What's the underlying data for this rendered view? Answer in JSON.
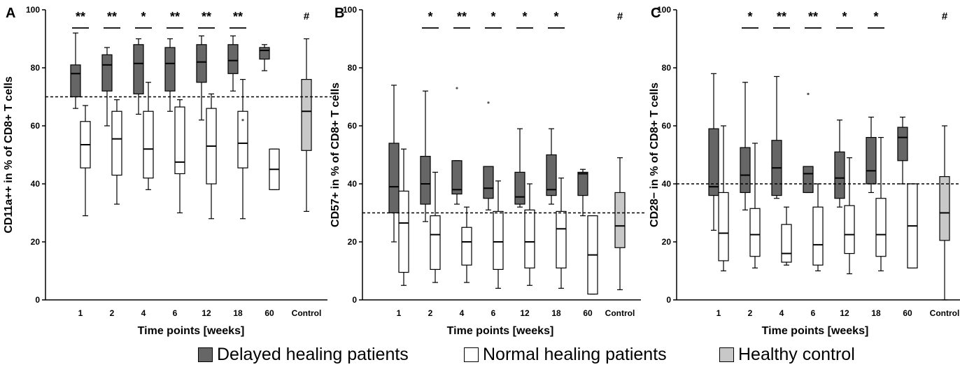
{
  "figure": {
    "x_axis_title": "Time points [weeks]",
    "legend": [
      {
        "label": "Delayed healing patients",
        "color": "#666666"
      },
      {
        "label": "Normal healing patients",
        "color": "#ffffff"
      },
      {
        "label": "Healthy control",
        "color": "#c8c8c8"
      }
    ]
  },
  "chart_data": [
    {
      "type": "box",
      "panel_letter": "A",
      "ylabel": "CD11a++ in % of CD8+ T cells",
      "ylim": [
        0,
        100
      ],
      "yticks": [
        0,
        20,
        40,
        60,
        80,
        100
      ],
      "categories": [
        "1",
        "2",
        "4",
        "6",
        "12",
        "18",
        "60",
        "Control"
      ],
      "reference_line": 70,
      "series": [
        {
          "name": "Delayed healing patients",
          "color": "#666666",
          "boxes": [
            {
              "category": "1",
              "min": 66,
              "q1": 70,
              "median": 78,
              "q3": 81,
              "max": 92
            },
            {
              "category": "2",
              "min": 60,
              "q1": 72,
              "median": 81,
              "q3": 84.5,
              "max": 87
            },
            {
              "category": "4",
              "min": 64,
              "q1": 71,
              "median": 81.5,
              "q3": 88,
              "max": 90
            },
            {
              "category": "6",
              "min": 65,
              "q1": 72,
              "median": 81.5,
              "q3": 87,
              "max": 90
            },
            {
              "category": "12",
              "min": 62,
              "q1": 75,
              "median": 82,
              "q3": 88,
              "max": 91
            },
            {
              "category": "18",
              "min": 72,
              "q1": 78,
              "median": 82.5,
              "q3": 88,
              "max": 91
            },
            {
              "category": "60",
              "min": 79,
              "q1": 83,
              "median": 86,
              "q3": 87,
              "max": 88
            }
          ]
        },
        {
          "name": "Normal healing patients",
          "color": "#ffffff",
          "boxes": [
            {
              "category": "1",
              "min": 29,
              "q1": 45.5,
              "median": 53.5,
              "q3": 61.5,
              "max": 67
            },
            {
              "category": "2",
              "min": 33,
              "q1": 43,
              "median": 55.5,
              "q3": 65,
              "max": 69
            },
            {
              "category": "4",
              "min": 38,
              "q1": 42,
              "median": 52,
              "q3": 65,
              "max": 75
            },
            {
              "category": "6",
              "min": 30,
              "q1": 43.5,
              "median": 47.5,
              "q3": 66.5,
              "max": 69
            },
            {
              "category": "12",
              "min": 28,
              "q1": 40,
              "median": 53,
              "q3": 66,
              "max": 71
            },
            {
              "category": "18",
              "min": 28,
              "q1": 45.5,
              "median": 54,
              "q3": 65,
              "max": 76,
              "outliers": [
                62
              ]
            },
            {
              "category": "60",
              "min": 38,
              "q1": 38,
              "median": 45,
              "q3": 52,
              "max": 52
            }
          ]
        },
        {
          "name": "Healthy control",
          "color": "#c8c8c8",
          "boxes": [
            {
              "category": "Control",
              "min": 30.5,
              "q1": 51.5,
              "median": 65,
              "q3": 76,
              "max": 90
            }
          ]
        }
      ],
      "significance": [
        {
          "category": "1",
          "label": "**"
        },
        {
          "category": "2",
          "label": "**"
        },
        {
          "category": "4",
          "label": "*"
        },
        {
          "category": "6",
          "label": "**"
        },
        {
          "category": "12",
          "label": "**"
        },
        {
          "category": "18",
          "label": "**"
        },
        {
          "category": "Control",
          "label": "#"
        }
      ]
    },
    {
      "type": "box",
      "panel_letter": "B",
      "ylabel": "CD57+ in % of CD8+ T cells",
      "ylim": [
        0,
        100
      ],
      "yticks": [
        0,
        20,
        40,
        60,
        80,
        100
      ],
      "categories": [
        "1",
        "2",
        "4",
        "6",
        "12",
        "18",
        "60",
        "Control"
      ],
      "reference_line": 30,
      "series": [
        {
          "name": "Delayed healing patients",
          "color": "#666666",
          "boxes": [
            {
              "category": "1",
              "min": 20,
              "q1": 30,
              "median": 39,
              "q3": 54,
              "max": 74
            },
            {
              "category": "2",
              "min": 27,
              "q1": 33,
              "median": 40,
              "q3": 49.5,
              "max": 72
            },
            {
              "category": "4",
              "min": 33,
              "q1": 36.5,
              "median": 38,
              "q3": 48,
              "max": 48,
              "outliers": [
                73
              ]
            },
            {
              "category": "6",
              "min": 31,
              "q1": 35,
              "median": 38.5,
              "q3": 46,
              "max": 46,
              "outliers": [
                68
              ]
            },
            {
              "category": "12",
              "min": 32,
              "q1": 33,
              "median": 35.5,
              "q3": 44,
              "max": 59
            },
            {
              "category": "18",
              "min": 33,
              "q1": 36,
              "median": 38,
              "q3": 50,
              "max": 59
            },
            {
              "category": "60",
              "min": 29,
              "q1": 36,
              "median": 43.5,
              "q3": 44,
              "max": 45
            }
          ]
        },
        {
          "name": "Normal healing patients",
          "color": "#ffffff",
          "boxes": [
            {
              "category": "1",
              "min": 5,
              "q1": 9.5,
              "median": 26.5,
              "q3": 37.5,
              "max": 52
            },
            {
              "category": "2",
              "min": 6,
              "q1": 10.5,
              "median": 22.5,
              "q3": 29,
              "max": 44
            },
            {
              "category": "4",
              "min": 6,
              "q1": 12,
              "median": 20,
              "q3": 25,
              "max": 32
            },
            {
              "category": "6",
              "min": 4,
              "q1": 10.5,
              "median": 20,
              "q3": 30.5,
              "max": 41
            },
            {
              "category": "12",
              "min": 5,
              "q1": 11,
              "median": 20,
              "q3": 31,
              "max": 40
            },
            {
              "category": "18",
              "min": 4,
              "q1": 11,
              "median": 24.5,
              "q3": 30.5,
              "max": 42
            },
            {
              "category": "60",
              "min": 2,
              "q1": 2,
              "median": 15.5,
              "q3": 29,
              "max": 29
            }
          ]
        },
        {
          "name": "Healthy control",
          "color": "#c8c8c8",
          "boxes": [
            {
              "category": "Control",
              "min": 3.5,
              "q1": 18,
              "median": 25.5,
              "q3": 37,
              "max": 49
            }
          ]
        }
      ],
      "significance": [
        {
          "category": "2",
          "label": "*"
        },
        {
          "category": "4",
          "label": "**"
        },
        {
          "category": "6",
          "label": "*"
        },
        {
          "category": "12",
          "label": "*"
        },
        {
          "category": "18",
          "label": "*"
        },
        {
          "category": "Control",
          "label": "#"
        }
      ]
    },
    {
      "type": "box",
      "panel_letter": "C",
      "ylabel": "CD28− in % of CD8+ T cells",
      "ylim": [
        0,
        100
      ],
      "yticks": [
        0,
        20,
        40,
        60,
        80,
        100
      ],
      "categories": [
        "1",
        "2",
        "4",
        "6",
        "12",
        "18",
        "60",
        "Control"
      ],
      "reference_line": 40,
      "series": [
        {
          "name": "Delayed healing patients",
          "color": "#666666",
          "boxes": [
            {
              "category": "1",
              "min": 24,
              "q1": 36,
              "median": 39,
              "q3": 59,
              "max": 78
            },
            {
              "category": "2",
              "min": 31,
              "q1": 37,
              "median": 43,
              "q3": 52.5,
              "max": 75
            },
            {
              "category": "4",
              "min": 35,
              "q1": 36,
              "median": 45.5,
              "q3": 55,
              "max": 77
            },
            {
              "category": "6",
              "min": 37,
              "q1": 37,
              "median": 43.5,
              "q3": 46,
              "max": 46,
              "outliers": [
                71
              ]
            },
            {
              "category": "12",
              "min": 32,
              "q1": 35,
              "median": 42,
              "q3": 51,
              "max": 62
            },
            {
              "category": "18",
              "min": 37,
              "q1": 40,
              "median": 44.5,
              "q3": 56,
              "max": 63
            },
            {
              "category": "60",
              "min": 40,
              "q1": 48,
              "median": 56,
              "q3": 59.5,
              "max": 63
            }
          ]
        },
        {
          "name": "Normal healing patients",
          "color": "#ffffff",
          "boxes": [
            {
              "category": "1",
              "min": 10,
              "q1": 13.5,
              "median": 23,
              "q3": 37,
              "max": 60
            },
            {
              "category": "2",
              "min": 11,
              "q1": 15,
              "median": 22.5,
              "q3": 31.5,
              "max": 54
            },
            {
              "category": "4",
              "min": 12,
              "q1": 13,
              "median": 16,
              "q3": 26,
              "max": 32
            },
            {
              "category": "6",
              "min": 10,
              "q1": 12,
              "median": 19,
              "q3": 32,
              "max": 40
            },
            {
              "category": "12",
              "min": 9,
              "q1": 16,
              "median": 22.5,
              "q3": 32.5,
              "max": 49
            },
            {
              "category": "18",
              "min": 10,
              "q1": 15,
              "median": 22.5,
              "q3": 35,
              "max": 56
            },
            {
              "category": "60",
              "min": 11,
              "q1": 11,
              "median": 25.5,
              "q3": 40,
              "max": 40
            }
          ]
        },
        {
          "name": "Healthy control",
          "color": "#c8c8c8",
          "boxes": [
            {
              "category": "Control",
              "min": 0,
              "q1": 20.5,
              "median": 30,
              "q3": 42.5,
              "max": 60
            }
          ]
        }
      ],
      "significance": [
        {
          "category": "2",
          "label": "*"
        },
        {
          "category": "4",
          "label": "**"
        },
        {
          "category": "6",
          "label": "**"
        },
        {
          "category": "12",
          "label": "*"
        },
        {
          "category": "18",
          "label": "*"
        },
        {
          "category": "Control",
          "label": "#"
        }
      ]
    }
  ]
}
